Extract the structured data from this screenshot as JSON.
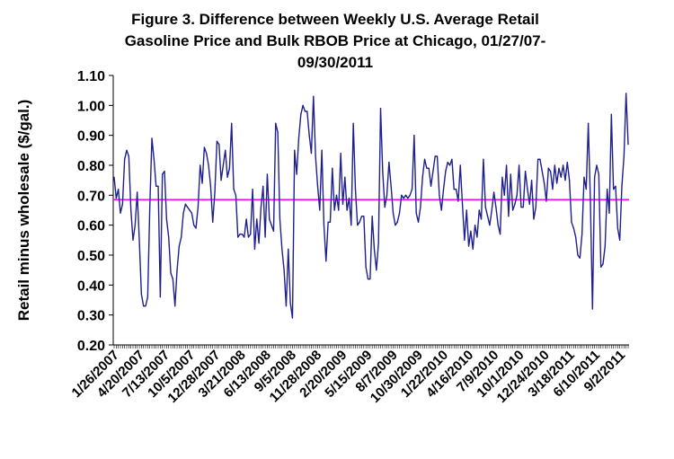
{
  "chart_data": {
    "type": "line",
    "title_lines": [
      "Figure 3. Difference between Weekly U.S. Average Retail",
      "Gasoline Price and Bulk RBOB Price at Chicago, 01/27/07-",
      "09/30/2011"
    ],
    "title": "Figure 3. Difference between Weekly U.S. Average Retail Gasoline Price and Bulk RBOB Price at Chicago, 01/27/07-09/30/2011",
    "ylabel": "Retail minus wholesale ($/gal.)",
    "xlabel": "",
    "ylim": [
      0.2,
      1.1
    ],
    "y_ticks": [
      "0.20",
      "0.30",
      "0.40",
      "0.50",
      "0.60",
      "0.70",
      "0.80",
      "0.90",
      "1.00",
      "1.10"
    ],
    "x_tick_labels": [
      "1/26/2007",
      "4/20/2007",
      "7/13/2007",
      "10/5/2007",
      "12/28/2007",
      "3/21/2008",
      "6/13/2008",
      "9/5/2008",
      "11/28/2008",
      "2/20/2009",
      "5/15/2009",
      "8/7/2009",
      "10/30/2009",
      "1/22/2010",
      "4/16/2010",
      "7/9/2010",
      "10/1/2010",
      "12/24/2010",
      "3/18/2011",
      "6/10/2011",
      "9/2/2011"
    ],
    "grid": false,
    "legend": "none",
    "colors": {
      "series": "#1f1f8f",
      "reference_line": "#ff00ff"
    },
    "series": [
      {
        "values": [
          0.76,
          0.69,
          0.72,
          0.64,
          0.67,
          0.82,
          0.85,
          0.83,
          0.65,
          0.55,
          0.6,
          0.71,
          0.55,
          0.37,
          0.33,
          0.33,
          0.36,
          0.66,
          0.89,
          0.82,
          0.73,
          0.73,
          0.36,
          0.77,
          0.78,
          0.62,
          0.56,
          0.44,
          0.42,
          0.33,
          0.45,
          0.53,
          0.56,
          0.64,
          0.67,
          0.66,
          0.65,
          0.64,
          0.6,
          0.59,
          0.66,
          0.8,
          0.74,
          0.86,
          0.84,
          0.8,
          0.73,
          0.61,
          0.71,
          0.88,
          0.87,
          0.75,
          0.8,
          0.85,
          0.76,
          0.79,
          0.94,
          0.72,
          0.7,
          0.56,
          0.57,
          0.57,
          0.56,
          0.62,
          0.56,
          0.57,
          0.72,
          0.52,
          0.62,
          0.54,
          0.66,
          0.73,
          0.56,
          0.77,
          0.62,
          0.6,
          0.58,
          0.94,
          0.91,
          0.62,
          0.52,
          0.45,
          0.33,
          0.52,
          0.34,
          0.29,
          0.85,
          0.77,
          0.89,
          0.97,
          1.0,
          0.98,
          0.98,
          0.9,
          0.84,
          1.03,
          0.83,
          0.73,
          0.65,
          0.85,
          0.6,
          0.48,
          0.61,
          0.61,
          0.79,
          0.65,
          0.7,
          0.65,
          0.84,
          0.67,
          0.76,
          0.65,
          0.69,
          0.6,
          0.94,
          0.72,
          0.6,
          0.61,
          0.63,
          0.63,
          0.46,
          0.42,
          0.42,
          0.63,
          0.52,
          0.45,
          0.54,
          0.99,
          0.78,
          0.66,
          0.7,
          0.81,
          0.73,
          0.64,
          0.6,
          0.61,
          0.64,
          0.7,
          0.69,
          0.7,
          0.69,
          0.7,
          0.72,
          0.9,
          0.64,
          0.61,
          0.66,
          0.76,
          0.82,
          0.79,
          0.79,
          0.73,
          0.78,
          0.83,
          0.83,
          0.7,
          0.65,
          0.72,
          0.78,
          0.81,
          0.8,
          0.82,
          0.72,
          0.72,
          0.68,
          0.8,
          0.67,
          0.55,
          0.65,
          0.53,
          0.58,
          0.52,
          0.6,
          0.56,
          0.65,
          0.62,
          0.82,
          0.66,
          0.63,
          0.6,
          0.65,
          0.71,
          0.66,
          0.6,
          0.57,
          0.76,
          0.7,
          0.8,
          0.63,
          0.77,
          0.65,
          0.67,
          0.7,
          0.8,
          0.66,
          0.66,
          0.78,
          0.72,
          0.67,
          0.75,
          0.62,
          0.66,
          0.82,
          0.82,
          0.78,
          0.74,
          0.68,
          0.79,
          0.78,
          0.72,
          0.8,
          0.74,
          0.79,
          0.76,
          0.8,
          0.75,
          0.81,
          0.75,
          0.61,
          0.59,
          0.56,
          0.5,
          0.49,
          0.57,
          0.76,
          0.72,
          0.94,
          0.68,
          0.32,
          0.76,
          0.8,
          0.77,
          0.46,
          0.47,
          0.53,
          0.72,
          0.64,
          0.97,
          0.72,
          0.73,
          0.59,
          0.55,
          0.73,
          0.83,
          1.04,
          0.87
        ]
      }
    ],
    "reference_line": {
      "value": 0.685
    }
  }
}
